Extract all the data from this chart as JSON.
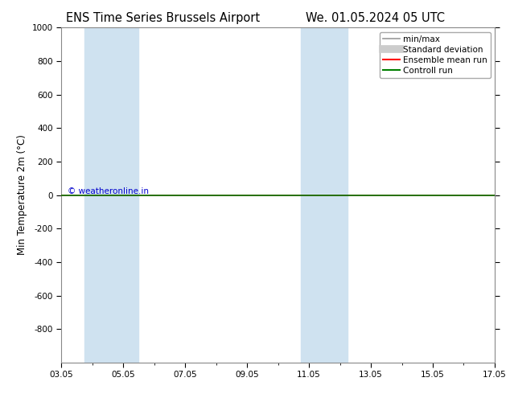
{
  "title_left": "ENS Time Series Brussels Airport",
  "title_right": "We. 01.05.2024 05 UTC",
  "ylabel": "Min Temperature 2m (°C)",
  "ylim_top": -1000,
  "ylim_bottom": 1000,
  "yticks": [
    -800,
    -600,
    -400,
    -200,
    0,
    200,
    400,
    600,
    800,
    1000
  ],
  "xlim": [
    3,
    17
  ],
  "xtick_labels": [
    "03.05",
    "05.05",
    "07.05",
    "09.05",
    "11.05",
    "13.05",
    "15.05",
    "17.05"
  ],
  "xtick_positions": [
    3,
    5,
    7,
    9,
    11,
    13,
    15,
    17
  ],
  "shaded_regions": [
    {
      "x_start": 3.75,
      "x_end": 4.75,
      "color": "#cfe2f0"
    },
    {
      "x_start": 4.75,
      "x_end": 5.5,
      "color": "#cfe2f0"
    },
    {
      "x_start": 10.75,
      "x_end": 11.5,
      "color": "#cfe2f0"
    },
    {
      "x_start": 11.5,
      "x_end": 12.25,
      "color": "#cfe2f0"
    }
  ],
  "green_line_y": 0,
  "green_line_color": "#008000",
  "red_line_y": 0,
  "red_line_color": "#ff0000",
  "watermark_text": "© weatheronline.in",
  "watermark_color": "#0000cc",
  "bg_color": "#ffffff",
  "legend_items": [
    {
      "label": "min/max",
      "color": "#999999",
      "lw": 1.2,
      "type": "line"
    },
    {
      "label": "Standard deviation",
      "color": "#cccccc",
      "lw": 7,
      "type": "line"
    },
    {
      "label": "Ensemble mean run",
      "color": "#ff0000",
      "lw": 1.5,
      "type": "line"
    },
    {
      "label": "Controll run",
      "color": "#008000",
      "lw": 1.5,
      "type": "line"
    }
  ],
  "title_fontsize": 10.5,
  "axis_label_fontsize": 8.5,
  "tick_fontsize": 7.5,
  "legend_fontsize": 7.5
}
